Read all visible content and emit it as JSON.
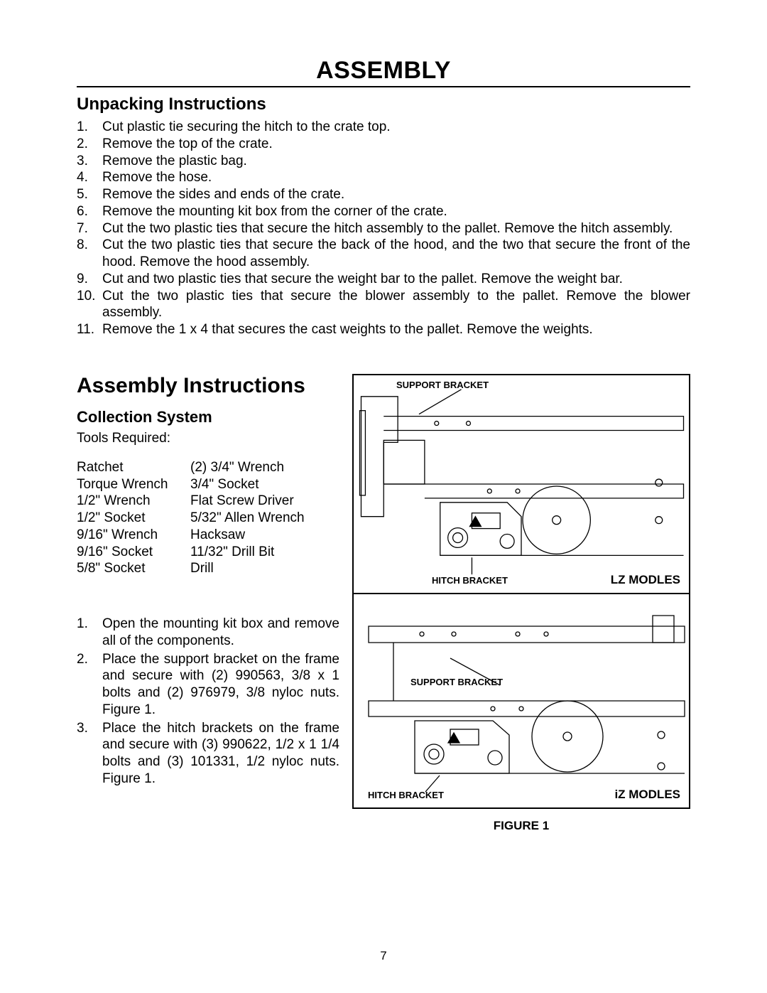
{
  "page_title": "ASSEMBLY",
  "unpack_heading": "Unpacking Instructions",
  "unpack_items": [
    "Cut plastic tie securing the hitch to the crate top.",
    "Remove the top of the crate.",
    "Remove the plastic bag.",
    "Remove the hose.",
    "Remove the sides and ends of the crate.",
    "Remove the mounting kit box from the corner of the crate.",
    "Cut the two plastic ties that secure the hitch assembly to the pallet.  Remove the hitch assembly.",
    "Cut the two plastic ties that secure the back of the hood, and the two that secure the front of the hood.  Remove the hood assembly.",
    "Cut and two plastic ties that secure the weight bar to the pallet.  Remove the weight bar.",
    "Cut the two plastic ties that secure the blower assembly to the pallet.  Remove the blower assembly.",
    "Remove the 1 x 4 that secures the cast weights to the pallet.  Remove the weights."
  ],
  "assembly_heading": "Assembly Instructions",
  "collection_heading": "Collection System",
  "tools_required_label": "Tools Required:",
  "tools_col1": [
    "Ratchet",
    "Torque Wrench",
    "1/2\" Wrench",
    "1/2\" Socket",
    "9/16\" Wrench",
    "9/16\" Socket",
    "5/8\" Socket"
  ],
  "tools_col2": [
    "(2) 3/4\" Wrench",
    "3/4\" Socket",
    "Flat Screw Driver",
    "5/32\" Allen Wrench",
    "Hacksaw",
    "11/32\" Drill Bit",
    "Drill"
  ],
  "steps": [
    "Open the mounting kit box and remove all of the components.",
    "Place the support bracket on the frame and secure with (2) 990563, 3/8 x 1 bolts and (2) 976979, 3/8 nyloc nuts.  Figure 1.",
    "Place the hitch brackets on the frame and secure with (3) 990622, 1/2 x 1 1/4 bolts and (3) 101331, 1/2 nyloc nuts.  Figure 1."
  ],
  "fig": {
    "support_bracket": "SUPPORT BRACKET",
    "hitch_bracket": "HITCH BRACKET",
    "lz": "LZ MODLES",
    "iz": "iZ MODLES",
    "caption": "FIGURE 1"
  },
  "page_number": "7"
}
